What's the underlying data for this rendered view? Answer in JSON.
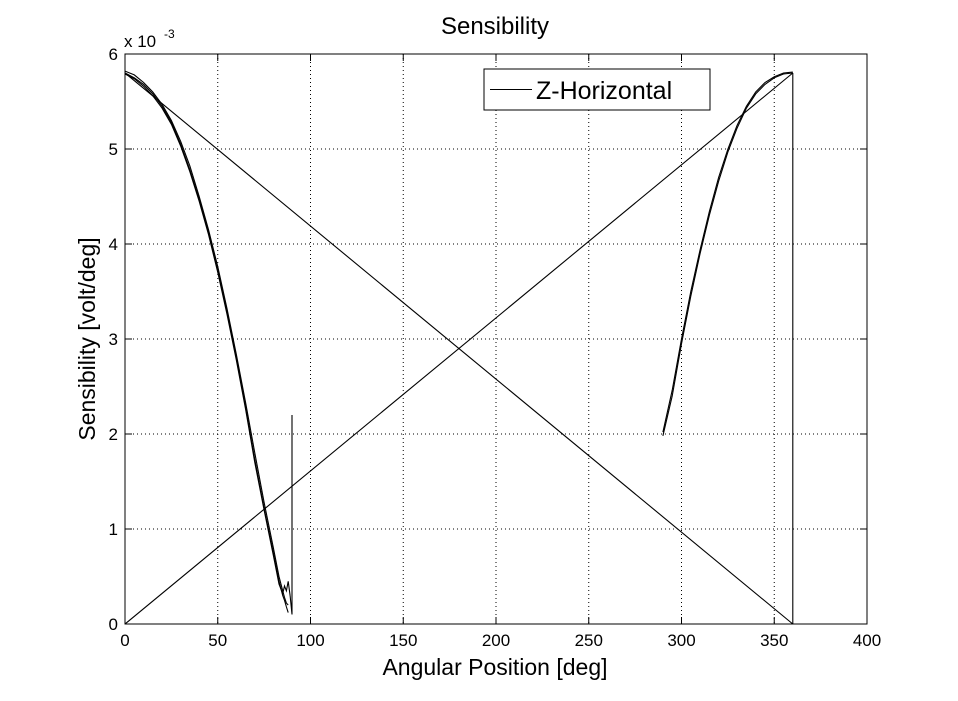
{
  "chart_data": {
    "type": "line",
    "title": "Sensibility",
    "xlabel": "Angular Position [deg]",
    "ylabel": "Sensibility [volt/deg]",
    "y_multiplier_label": "x 10",
    "y_multiplier_exponent": "-3",
    "xlim": [
      0,
      400
    ],
    "ylim": [
      0,
      6
    ],
    "xticks": [
      0,
      50,
      100,
      150,
      200,
      250,
      300,
      350,
      400
    ],
    "yticks": [
      0,
      1,
      2,
      3,
      4,
      5,
      6
    ],
    "grid": true,
    "legend_position": "top-right",
    "series": [
      {
        "name": "Z-Horizontal",
        "color": "#000000",
        "segments": [
          {
            "note": "decreasing branch 0-88 deg (several overlaid passes)",
            "x": [
              0,
              5,
              10,
              15,
              20,
              25,
              30,
              35,
              40,
              45,
              50,
              55,
              60,
              65,
              70,
              75,
              80,
              83,
              85,
              86,
              87,
              88
            ],
            "y": [
              5.8,
              5.75,
              5.68,
              5.58,
              5.45,
              5.28,
              5.05,
              4.78,
              4.47,
              4.12,
              3.72,
              3.28,
              2.8,
              2.28,
              1.73,
              1.22,
              0.75,
              0.45,
              0.3,
              0.25,
              0.18,
              0.12
            ]
          },
          {
            "x": [
              0,
              5,
              10,
              15,
              20,
              25,
              30,
              35,
              40,
              45,
              50,
              55,
              60,
              65,
              70,
              75,
              80,
              83,
              85,
              86,
              87,
              88
            ],
            "y": [
              5.82,
              5.78,
              5.7,
              5.6,
              5.47,
              5.3,
              5.08,
              4.82,
              4.5,
              4.15,
              3.76,
              3.32,
              2.84,
              2.33,
              1.8,
              1.28,
              0.8,
              0.5,
              0.35,
              0.28,
              0.22,
              0.2
            ]
          },
          {
            "x": [
              0,
              5,
              10,
              15,
              20,
              25,
              30,
              35,
              40,
              45,
              50,
              55,
              60,
              65,
              70,
              75,
              80,
              83,
              85,
              86,
              87,
              88,
              89
            ],
            "y": [
              5.79,
              5.74,
              5.66,
              5.56,
              5.43,
              5.26,
              5.03,
              4.76,
              4.45,
              4.1,
              3.7,
              3.26,
              2.78,
              2.26,
              1.7,
              1.2,
              0.72,
              0.42,
              0.32,
              0.4,
              0.35,
              0.45,
              0.3
            ]
          },
          {
            "note": "spike at 90 deg",
            "x": [
              89,
              90,
              90,
              90
            ],
            "y": [
              0.3,
              0.1,
              2.2,
              0.3
            ]
          },
          {
            "note": "straight line from 0 to 360",
            "x": [
              0,
              360
            ],
            "y": [
              0,
              5.8
            ]
          },
          {
            "note": "straight line from 0 to 360",
            "x": [
              0,
              360
            ],
            "y": [
              5.8,
              0
            ]
          },
          {
            "note": "vertical line at 360",
            "x": [
              360,
              360
            ],
            "y": [
              0,
              5.8
            ]
          },
          {
            "note": "increasing branch 290-360 deg",
            "x": [
              290,
              295,
              300,
              305,
              310,
              315,
              320,
              325,
              330,
              335,
              340,
              345,
              350,
              355,
              360
            ],
            "y": [
              1.98,
              2.4,
              2.95,
              3.45,
              3.9,
              4.3,
              4.66,
              4.97,
              5.22,
              5.43,
              5.58,
              5.68,
              5.75,
              5.79,
              5.8
            ]
          },
          {
            "x": [
              290,
              295,
              300,
              305,
              310,
              315,
              320,
              325,
              330,
              335,
              340,
              345,
              350,
              355,
              360
            ],
            "y": [
              2.02,
              2.46,
              3.0,
              3.5,
              3.94,
              4.34,
              4.7,
              5.0,
              5.25,
              5.45,
              5.6,
              5.7,
              5.76,
              5.8,
              5.81
            ]
          }
        ]
      }
    ]
  }
}
